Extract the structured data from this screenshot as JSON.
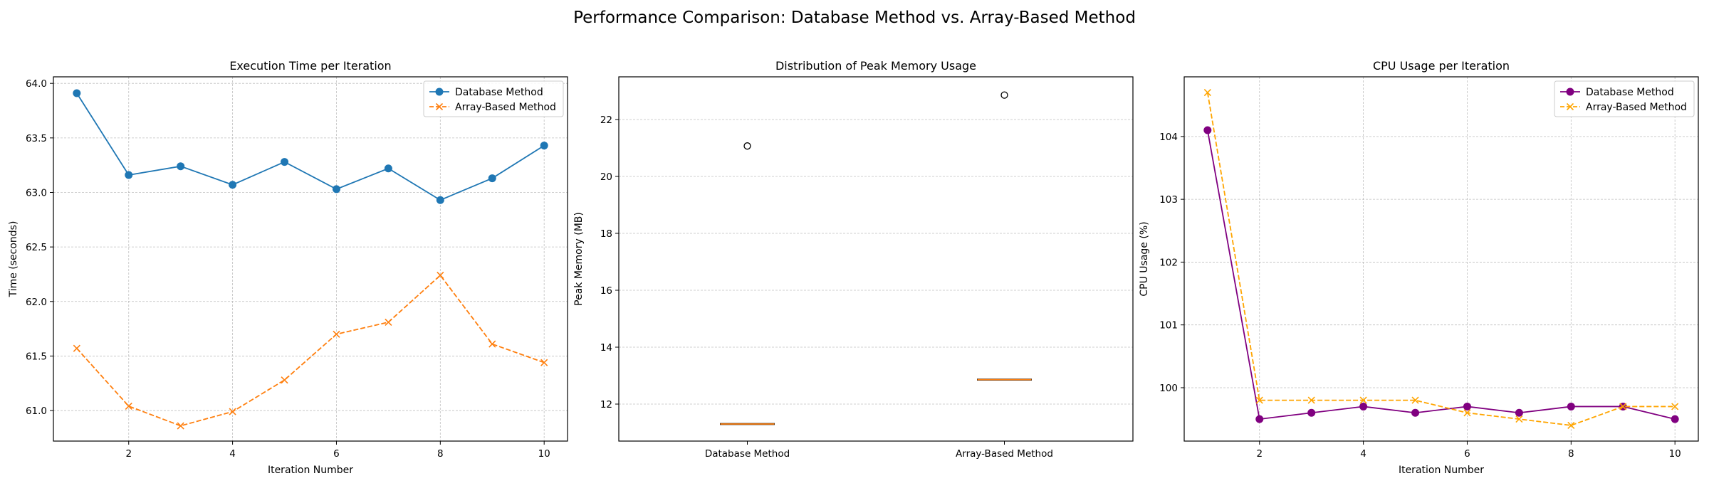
{
  "figure": {
    "title": "Performance Comparison: Database Method vs. Array-Based Method"
  },
  "chart_data": [
    {
      "type": "line",
      "title": "Execution Time per Iteration",
      "xlabel": "Iteration Number",
      "ylabel": "Time (seconds)",
      "x": [
        1,
        2,
        3,
        4,
        5,
        6,
        7,
        8,
        9,
        10
      ],
      "xlim": [
        0.55,
        10.45
      ],
      "ylim": [
        60.72,
        64.06
      ],
      "xticks": [
        2,
        4,
        6,
        8,
        10
      ],
      "xtick_labels": [
        "2",
        "4",
        "6",
        "8",
        "10"
      ],
      "yticks": [
        61.0,
        61.5,
        62.0,
        62.5,
        63.0,
        63.5,
        64.0
      ],
      "ytick_labels": [
        "61.0",
        "61.5",
        "62.0",
        "62.5",
        "63.0",
        "63.5",
        "64.0"
      ],
      "grid": true,
      "legend": "top-right",
      "series": [
        {
          "name": "Database Method",
          "color": "#1f77b4",
          "marker": "circle",
          "linestyle": "solid",
          "values": [
            63.91,
            63.16,
            63.24,
            63.07,
            63.28,
            63.03,
            63.22,
            62.93,
            63.13,
            63.43
          ]
        },
        {
          "name": "Array-Based Method",
          "color": "#ff7f0e",
          "marker": "x",
          "linestyle": "dashed",
          "values": [
            61.57,
            61.04,
            60.86,
            60.99,
            61.28,
            61.7,
            61.81,
            62.24,
            61.61,
            61.44
          ]
        }
      ]
    },
    {
      "type": "box",
      "title": "Distribution of Peak Memory Usage",
      "xlabel": "",
      "ylabel": "Peak Memory (MB)",
      "categories": [
        "Database Method",
        "Array-Based Method"
      ],
      "ylim": [
        10.7,
        23.5
      ],
      "yticks": [
        12,
        14,
        16,
        18,
        20,
        22
      ],
      "ytick_labels": [
        "12",
        "14",
        "16",
        "18",
        "20",
        "22"
      ],
      "grid": true,
      "median_color": "#ff7f0e",
      "boxes": [
        {
          "q1": 11.3,
          "median": 11.3,
          "q3": 11.3,
          "whislo": 11.3,
          "whishi": 11.3,
          "fliers": [
            21.07
          ]
        },
        {
          "q1": 12.86,
          "median": 12.86,
          "q3": 12.86,
          "whislo": 12.86,
          "whishi": 12.86,
          "fliers": [
            22.86
          ]
        }
      ]
    },
    {
      "type": "line",
      "title": "CPU Usage per Iteration",
      "xlabel": "Iteration Number",
      "ylabel": "CPU Usage (%)",
      "x": [
        1,
        2,
        3,
        4,
        5,
        6,
        7,
        8,
        9,
        10
      ],
      "xlim": [
        0.55,
        10.45
      ],
      "ylim": [
        99.15,
        104.95
      ],
      "xticks": [
        2,
        4,
        6,
        8,
        10
      ],
      "xtick_labels": [
        "2",
        "4",
        "6",
        "8",
        "10"
      ],
      "yticks": [
        100,
        101,
        102,
        103,
        104
      ],
      "ytick_labels": [
        "100",
        "101",
        "102",
        "103",
        "104"
      ],
      "grid": true,
      "legend": "top-right",
      "series": [
        {
          "name": "Database Method",
          "color": "#800080",
          "marker": "circle",
          "linestyle": "solid",
          "values": [
            104.1,
            99.5,
            99.6,
            99.7,
            99.6,
            99.7,
            99.6,
            99.7,
            99.7,
            99.5
          ]
        },
        {
          "name": "Array-Based Method",
          "color": "#ffa500",
          "marker": "x",
          "linestyle": "dashed",
          "values": [
            104.7,
            99.8,
            99.8,
            99.8,
            99.8,
            99.6,
            99.5,
            99.4,
            99.7,
            99.7
          ]
        }
      ]
    }
  ]
}
